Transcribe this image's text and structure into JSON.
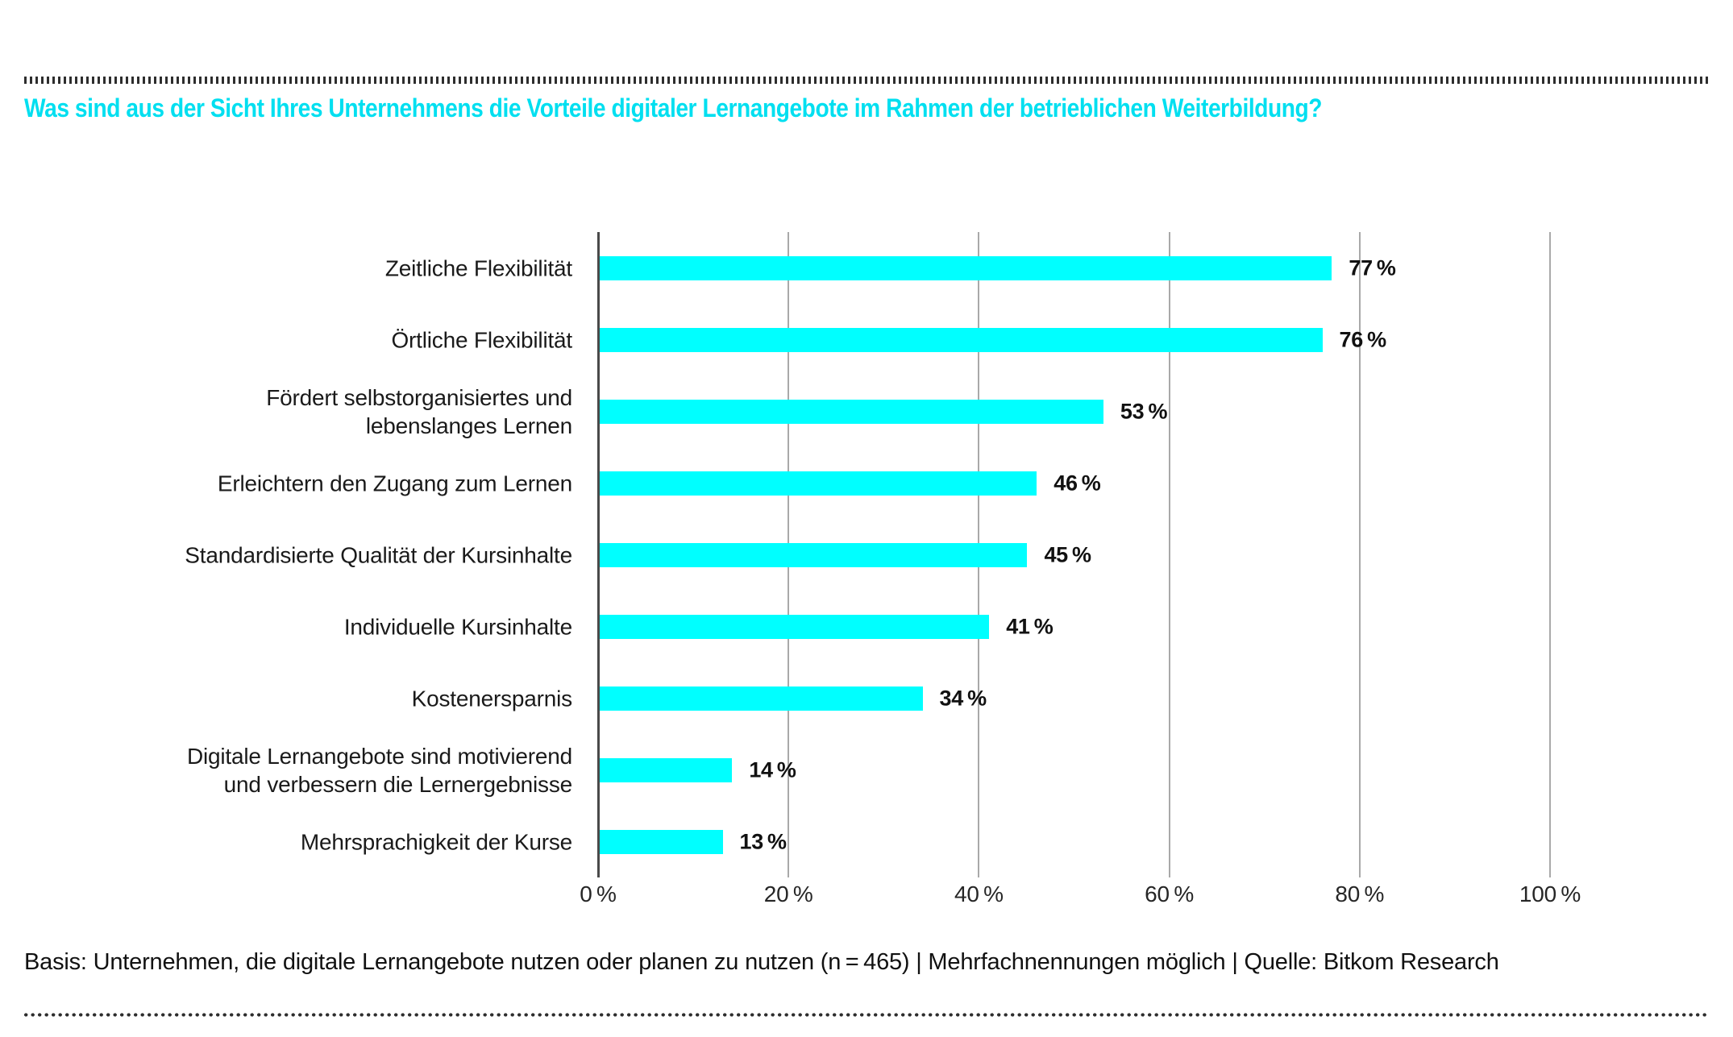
{
  "chart_data": {
    "type": "bar",
    "orientation": "horizontal",
    "title": "Was sind aus der Sicht Ihres Unternehmens die Vorteile digitaler Lernangebote im Rahmen der betrieblichen Weiterbildung?",
    "title_color": "#00dff0",
    "categories": [
      "Zeitliche Flexibilität",
      "Örtliche Flexibilität",
      "Fördert selbstorganisiertes und\nlebenslanges Lernen",
      "Erleichtern den Zugang zum Lernen",
      "Standardisierte Qualität der Kursinhalte",
      "Individuelle Kursinhalte",
      "Kostenersparnis",
      "Digitale Lernangebote sind motivierend\nund verbessern die Lernergebnisse",
      "Mehrsprachigkeit der Kurse"
    ],
    "values": [
      77,
      76,
      53,
      46,
      45,
      41,
      34,
      14,
      13
    ],
    "value_labels": [
      "77 %",
      "76 %",
      "53 %",
      "46 %",
      "45 %",
      "41 %",
      "34 %",
      "14 %",
      "13 %"
    ],
    "xlabel": "",
    "ylabel": "",
    "xlim": [
      0,
      100
    ],
    "ticks": [
      0,
      20,
      40,
      60,
      80,
      100
    ],
    "tick_labels": [
      "0 %",
      "20 %",
      "40 %",
      "60 %",
      "80 %",
      "100 %"
    ],
    "grid": "vertical",
    "legend": "none",
    "bar_color": "#00ffff",
    "grid_color": "#a9a9a9",
    "axis_color": "#4a4a4a",
    "source_note": "Basis: Unternehmen, die digitale Lernangebote nutzen oder planen zu nutzen (n = 465) | Mehrfachnennungen möglich | Quelle: Bitkom Research"
  }
}
